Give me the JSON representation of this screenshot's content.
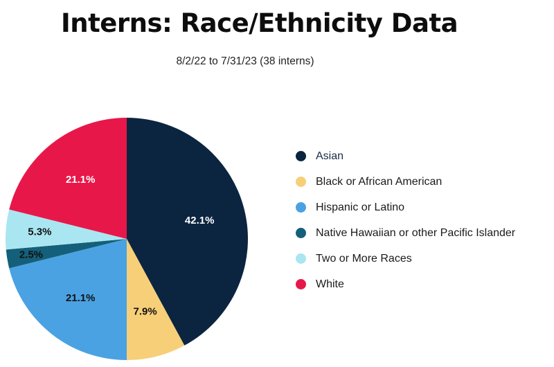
{
  "chart_data": {
    "type": "pie",
    "title": "Interns: Race/Ethnicity Data",
    "subtitle": "8/2/22 to 7/31/23 (38 interns)",
    "legend_position": "right",
    "slices": [
      {
        "name": "Asian",
        "value": 42.1,
        "label": "42.1%",
        "color": "#0b2540",
        "label_color": "#ffffff"
      },
      {
        "name": "Black or African American",
        "value": 7.9,
        "label": "7.9%",
        "color": "#f7cf78",
        "label_color": "#111111"
      },
      {
        "name": "Hispanic or Latino",
        "value": 21.1,
        "label": "21.1%",
        "color": "#4aa2e2",
        "label_color": "#111111"
      },
      {
        "name": "Native Hawaiian or other Pacific Islander",
        "value": 2.5,
        "label": "2.5%",
        "color": "#14607a",
        "label_color": "#111111"
      },
      {
        "name": "Two or More Races",
        "value": 5.3,
        "label": "5.3%",
        "color": "#a9e6f1",
        "label_color": "#111111"
      },
      {
        "name": "White",
        "value": 21.1,
        "label": "21.1%",
        "color": "#e8174a",
        "label_color": "#ffffff"
      }
    ]
  }
}
